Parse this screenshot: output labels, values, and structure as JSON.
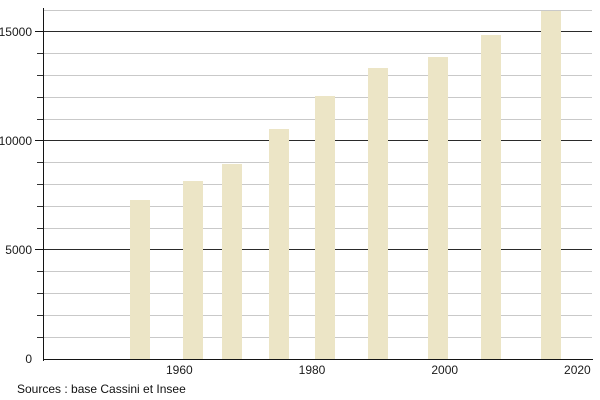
{
  "chart_data": {
    "type": "bar",
    "x": [
      1954,
      1962,
      1968,
      1975,
      1982,
      1990,
      1999,
      2007,
      2016
    ],
    "values": [
      7300,
      8150,
      8950,
      10550,
      12050,
      13350,
      13850,
      14850,
      15950
    ],
    "title": "",
    "xlabel": "",
    "ylabel": "",
    "xlim": [
      1939.6,
      2022.2
    ],
    "ylim": [
      0,
      16000
    ],
    "x_tick_labels": [
      "1960",
      "1980",
      "2000",
      "2020"
    ],
    "x_tick_values": [
      1960,
      1980,
      2000,
      2020
    ],
    "y_tick_labels": [
      "0",
      "5000",
      "10000",
      "15000"
    ],
    "y_tick_values": [
      0,
      5000,
      10000,
      15000
    ],
    "y_minor_step": 1000,
    "grid": true,
    "legend": "none",
    "bar_color": "#ece5c6",
    "minor_grid_color": "#c9c9c9",
    "major_grid_color": "#2a2a2a",
    "source_note": "Sources : base Cassini et Insee"
  }
}
